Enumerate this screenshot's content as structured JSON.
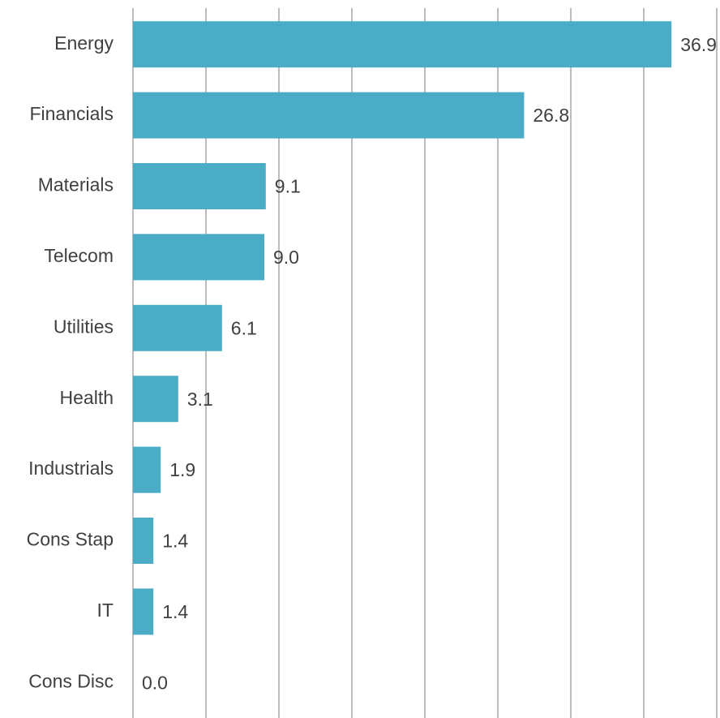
{
  "chart_data": {
    "type": "bar",
    "orientation": "horizontal",
    "categories": [
      "Energy",
      "Financials",
      "Materials",
      "Telecom",
      "Utilities",
      "Health",
      "Industrials",
      "Cons Stap",
      "IT",
      "Cons Disc"
    ],
    "values": [
      36.9,
      26.8,
      9.1,
      9.0,
      6.1,
      3.1,
      1.9,
      1.4,
      1.4,
      0.0
    ],
    "value_labels": [
      "36.9",
      "26.8",
      "9.1",
      "9.0",
      "6.1",
      "3.1",
      "1.9",
      "1.4",
      "1.4",
      "0.0"
    ],
    "color": "#4aacc5",
    "xlim": [
      0,
      40
    ],
    "xticks": [
      0,
      5,
      10,
      15,
      20,
      25,
      30,
      35,
      40
    ],
    "grid": true
  }
}
